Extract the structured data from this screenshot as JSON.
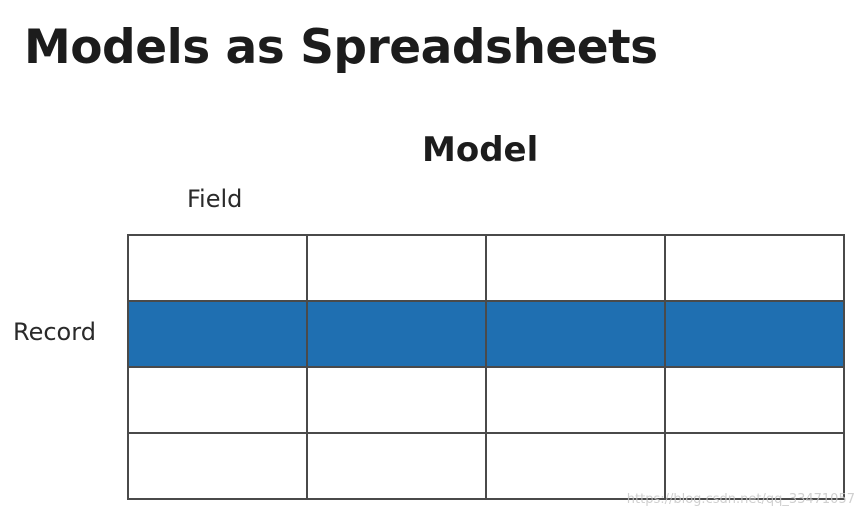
{
  "title": "Models as Spreadsheets",
  "diagram": {
    "model_label": "Model",
    "field_label": "Field",
    "record_label": "Record",
    "columns": 4,
    "rows": 4,
    "highlighted_row": 2,
    "highlight_color": "#1f6fb1",
    "grid_line_color": "#4a4a4a"
  },
  "watermark": "https://blog.csdn.net/qq_33471057"
}
